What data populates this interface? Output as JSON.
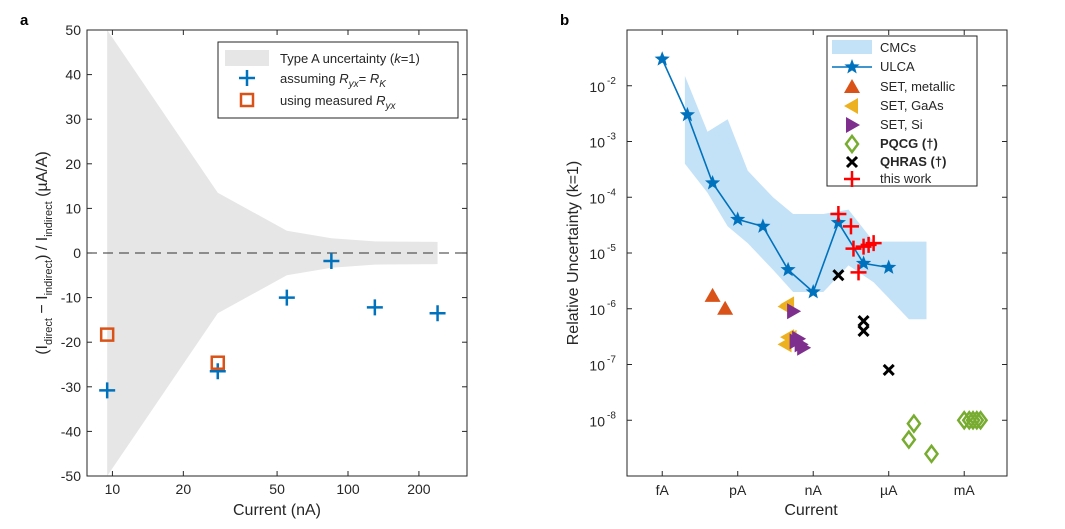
{
  "figure": {
    "panel_a_label": "a",
    "panel_b_label": "b"
  },
  "chart_data": [
    {
      "type": "scatter",
      "panel": "a",
      "xlabel": "Current (nA)",
      "ylabel_parts": [
        "(I",
        "direct",
        " − I",
        "indirect",
        ") / I",
        "indirect",
        " (µA/A)"
      ],
      "xscale": "log",
      "xlim": [
        7.8,
        320
      ],
      "ylim": [
        -50,
        50
      ],
      "xticks": [
        10,
        20,
        50,
        100,
        200
      ],
      "xtick_labels": [
        "10",
        "20",
        "50",
        "100",
        "200"
      ],
      "yticks": [
        -50,
        -40,
        -30,
        -20,
        -10,
        0,
        10,
        20,
        30,
        40,
        50
      ],
      "ytick_labels": [
        "-50",
        "-40",
        "-30",
        "-20",
        "-10",
        "0",
        "10",
        "20",
        "30",
        "40",
        "50"
      ],
      "grid": false,
      "legend_position": "top-right",
      "zero_line": "dashed",
      "uncertainty_band": {
        "name": "Type A uncertainty (k=1)",
        "color": "#e6e6e6",
        "x": [
          9.5,
          28,
          55,
          85,
          130,
          240
        ],
        "half_width": [
          50,
          13.5,
          5,
          3.3,
          2.6,
          2.5
        ]
      },
      "series": [
        {
          "name": "assuming R_yx = R_K",
          "marker": "plus",
          "color": "#0072bd",
          "x": [
            9.5,
            28,
            55,
            85,
            130,
            240
          ],
          "y": [
            -30.8,
            -26.5,
            -10,
            -1.8,
            -12.2,
            -13.5
          ]
        },
        {
          "name": "using measured R_yx",
          "marker": "square",
          "color": "#d95319",
          "x": [
            9.5,
            28
          ],
          "y": [
            -18.3,
            -24.6
          ]
        }
      ],
      "legend": {
        "band": [
          "Type A uncertainty (",
          "k",
          "=1)"
        ],
        "s1": [
          "assuming ",
          "R",
          "yx",
          "= ",
          "R",
          "K"
        ],
        "s2": [
          "using measured ",
          "R",
          "yx"
        ]
      }
    },
    {
      "type": "scatter",
      "panel": "b",
      "xlabel": "Current",
      "ylabel": "Relative Uncertainty (k=1)",
      "yscale": "log",
      "xlim": [
        -16.4,
        -1.3
      ],
      "ylim": [
        1e-09,
        0.1
      ],
      "xticks": [
        -15,
        -12,
        -9,
        -6,
        -3
      ],
      "xtick_labels": [
        "fA",
        "pA",
        "nA",
        "µA",
        "mA"
      ],
      "ytick_exponents": [
        -2,
        -3,
        -4,
        -5,
        -6,
        -7,
        -8
      ],
      "ytick_base": "10",
      "grid": false,
      "legend_position": "top-right",
      "x_units": "log10 current in amperes",
      "series": [
        {
          "name": "CMCs",
          "kind": "band",
          "color": "#c3e2f7",
          "x": [
            -14.1,
            -13.2,
            -12.4,
            -11.6,
            -10.6,
            -9.8,
            -8.6,
            -7.6,
            -6.6,
            -5.2,
            -4.5,
            -4.5,
            -5.2,
            -6.6,
            -7.6,
            -8.6,
            -9.8,
            -10.6,
            -11.6,
            -12.4,
            -13.2,
            -14.1
          ],
          "y": [
            0.015,
            0.0015,
            0.0025,
            0.0003,
            0.0001,
            5e-05,
            5e-05,
            6e-05,
            1.6e-05,
            1.6e-05,
            1.6e-05,
            6.5e-07,
            6.5e-07,
            3e-06,
            6e-06,
            2e-06,
            2e-06,
            5e-06,
            1.5e-05,
            3e-05,
            0.00012,
            0.0004
          ]
        },
        {
          "name": "ULCA",
          "kind": "line-star",
          "color": "#0072bd",
          "x": [
            -15,
            -14,
            -13,
            -12,
            -11,
            -10,
            -9,
            -8,
            -7,
            -6
          ],
          "y": [
            0.03,
            0.003,
            0.00018,
            4e-05,
            3e-05,
            5e-06,
            2e-06,
            3.5e-05,
            6.5e-06,
            5.5e-06
          ]
        },
        {
          "name": "SET, metallic",
          "marker": "triangle-up",
          "color": "#d95319",
          "x": [
            -13,
            -12.5
          ],
          "y": [
            1.7e-06,
            1e-06
          ]
        },
        {
          "name": "SET, GaAs",
          "marker": "triangle-left",
          "color": "#edb120",
          "x": [
            -10.1,
            -10,
            -9.9,
            -10.1,
            -10
          ],
          "y": [
            1.1e-06,
            1.2e-06,
            3e-07,
            2.3e-07,
            3.1e-07
          ]
        },
        {
          "name": "SET, Si",
          "marker": "triangle-right",
          "color": "#7e2f8e",
          "x": [
            -9.8,
            -9.6,
            -9.4,
            -9.7,
            -9.5
          ],
          "y": [
            9e-07,
            2.9e-07,
            2e-07,
            2.6e-07,
            2.3e-07
          ]
        },
        {
          "name": "PQCG (†)",
          "marker": "diamond",
          "color": "#77ac30",
          "x": [
            -5.2,
            -5.0,
            -4.3,
            -3,
            -2.8,
            -2.65,
            -2.5,
            -2.35
          ],
          "y": [
            4.5e-09,
            8.7e-09,
            2.5e-09,
            1e-08,
            1e-08,
            1e-08,
            1e-08,
            1e-08
          ]
        },
        {
          "name": "QHRAS (†)",
          "marker": "cross",
          "color": "#000000",
          "x": [
            -8,
            -7,
            -7,
            -6
          ],
          "y": [
            4e-06,
            6e-07,
            4e-07,
            8e-08
          ]
        },
        {
          "name": "this work",
          "marker": "plus",
          "color": "#ff0000",
          "x": [
            -8,
            -7.5,
            -7.4,
            -7,
            -6.8,
            -6.6,
            -7.2
          ],
          "y": [
            5e-05,
            3e-05,
            1.2e-05,
            1.3e-05,
            1.4e-05,
            1.5e-05,
            4.5e-06
          ]
        }
      ]
    }
  ]
}
